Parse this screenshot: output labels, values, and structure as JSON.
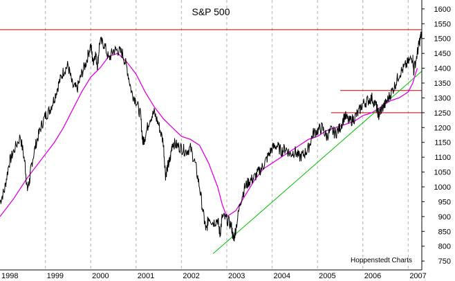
{
  "chart_data": {
    "type": "line",
    "title": "S&P 500",
    "credit": "Hoppenstedt Charts",
    "xlabel": "",
    "ylabel": "",
    "x_ticks": [
      "1998",
      "1999",
      "2000",
      "2001",
      "2002",
      "2003",
      "2004",
      "2005",
      "2006",
      "2007"
    ],
    "y_ticks": [
      750,
      800,
      850,
      900,
      950,
      1000,
      1050,
      1100,
      1150,
      1200,
      1250,
      1300,
      1350,
      1400,
      1450,
      1500,
      1550,
      1600
    ],
    "xlim": [
      1998.0,
      2007.3
    ],
    "ylim": [
      720,
      1630
    ],
    "grid": true,
    "colors": {
      "price": "#000000",
      "moving_average": "#e000e0",
      "resistance": "#c00000",
      "support_trend": "#00c000"
    },
    "series": [
      {
        "x": [
          1998.0,
          1998.1,
          1998.2,
          1998.3,
          1998.45,
          1998.55,
          1998.6,
          1998.65,
          1998.7,
          1998.8,
          1998.9,
          1999.0,
          1999.1,
          1999.2,
          1999.3,
          1999.4,
          1999.5,
          1999.6,
          1999.7,
          1999.8,
          1999.9,
          2000.0,
          2000.05,
          2000.1,
          2000.15,
          2000.2,
          2000.3,
          2000.4,
          2000.5,
          2000.6,
          2000.7,
          2000.8,
          2000.9,
          2001.0,
          2001.1,
          2001.15,
          2001.2,
          2001.3,
          2001.4,
          2001.5,
          2001.6,
          2001.65,
          2001.7,
          2001.75,
          2001.8,
          2001.9,
          2002.0,
          2002.1,
          2002.2,
          2002.3,
          2002.4,
          2002.5,
          2002.55,
          2002.6,
          2002.7,
          2002.8,
          2002.85,
          2002.9,
          2003.0,
          2003.1,
          2003.15,
          2003.2,
          2003.3,
          2003.4,
          2003.5,
          2003.6,
          2003.7,
          2003.8,
          2003.9,
          2004.0,
          2004.1,
          2004.2,
          2004.3,
          2004.4,
          2004.5,
          2004.6,
          2004.7,
          2004.8,
          2004.9,
          2005.0,
          2005.1,
          2005.2,
          2005.3,
          2005.4,
          2005.5,
          2005.6,
          2005.7,
          2005.8,
          2005.9,
          2006.0,
          2006.1,
          2006.2,
          2006.3,
          2006.35,
          2006.4,
          2006.5,
          2006.6,
          2006.7,
          2006.8,
          2006.9,
          2007.0,
          2007.1,
          2007.12,
          2007.2,
          2007.25,
          2007.3
        ],
        "values": [
          950,
          990,
          1080,
          1120,
          1170,
          1080,
          990,
          1020,
          1080,
          1150,
          1200,
          1240,
          1260,
          1300,
          1350,
          1390,
          1410,
          1340,
          1330,
          1380,
          1420,
          1480,
          1420,
          1450,
          1410,
          1490,
          1480,
          1430,
          1460,
          1460,
          1450,
          1400,
          1320,
          1290,
          1240,
          1150,
          1170,
          1230,
          1250,
          1210,
          1150,
          1040,
          1070,
          1090,
          1150,
          1140,
          1130,
          1120,
          1130,
          1080,
          1000,
          890,
          850,
          900,
          880,
          890,
          840,
          900,
          890,
          870,
          820,
          860,
          950,
          1000,
          1020,
          1030,
          1050,
          1070,
          1100,
          1130,
          1140,
          1120,
          1130,
          1110,
          1120,
          1100,
          1110,
          1130,
          1180,
          1190,
          1200,
          1170,
          1190,
          1180,
          1200,
          1240,
          1220,
          1230,
          1250,
          1280,
          1290,
          1300,
          1270,
          1240,
          1260,
          1280,
          1310,
          1340,
          1380,
          1400,
          1420,
          1440,
          1390,
          1450,
          1490,
          1520
        ]
      },
      {
        "x": [
          1998.0,
          1998.3,
          1998.6,
          1998.8,
          1999.0,
          1999.2,
          1999.4,
          1999.6,
          1999.8,
          2000.0,
          2000.2,
          2000.4,
          2000.6,
          2000.8,
          2001.0,
          2001.2,
          2001.4,
          2001.6,
          2001.8,
          2002.0,
          2002.2,
          2002.4,
          2002.6,
          2002.8,
          2002.9,
          2003.0,
          2003.2,
          2003.4,
          2003.6,
          2003.8,
          2004.0,
          2004.2,
          2004.4,
          2004.6,
          2004.8,
          2005.0,
          2005.2,
          2005.4,
          2005.6,
          2005.8,
          2006.0,
          2006.2,
          2006.4,
          2006.6,
          2006.8,
          2007.0,
          2007.1,
          2007.2
        ],
        "values": [
          900,
          960,
          1030,
          1070,
          1110,
          1150,
          1200,
          1260,
          1320,
          1370,
          1400,
          1440,
          1450,
          1420,
          1380,
          1320,
          1270,
          1230,
          1200,
          1170,
          1160,
          1140,
          1080,
          1000,
          940,
          900,
          920,
          970,
          1020,
          1060,
          1080,
          1100,
          1120,
          1140,
          1160,
          1170,
          1190,
          1200,
          1210,
          1220,
          1240,
          1250,
          1270,
          1290,
          1300,
          1320,
          1350,
          1400
        ]
      }
    ],
    "horizontal_lines": [
      {
        "y": 1530,
        "x_start": 1998.0,
        "x_end": 2007.3
      },
      {
        "y": 1325,
        "x_start": 2005.5,
        "x_end": 2007.3
      },
      {
        "y": 1250,
        "x_start": 2005.3,
        "x_end": 2007.3
      }
    ],
    "trend_line": {
      "x": [
        2002.7,
        2007.3
      ],
      "values": [
        775,
        1390
      ]
    }
  }
}
